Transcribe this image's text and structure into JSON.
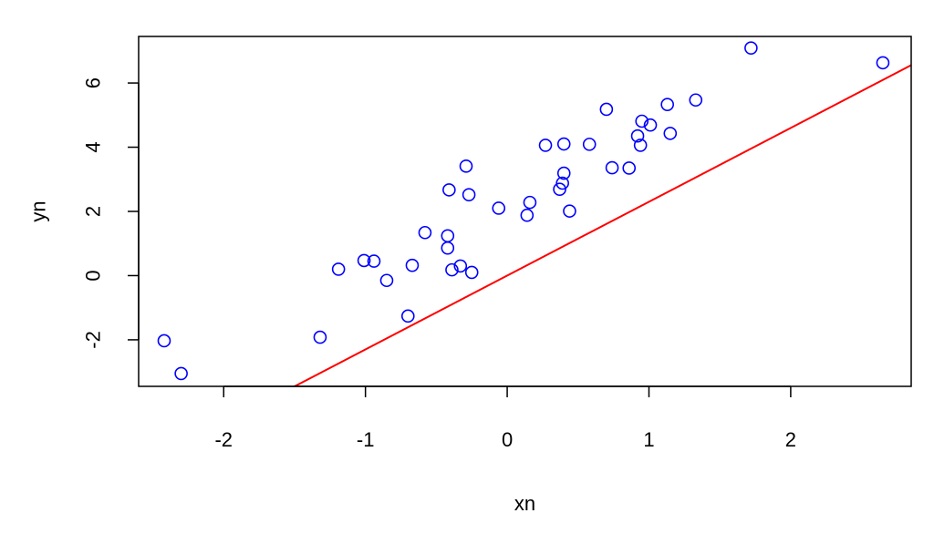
{
  "chart_data": {
    "type": "scatter",
    "title": "",
    "xlabel": "xn",
    "ylabel": "yn",
    "xlim": [
      -2.6,
      2.85
    ],
    "ylim": [
      -3.45,
      7.45
    ],
    "xticks": [
      -2,
      -1,
      0,
      1,
      2
    ],
    "yticks": [
      -2,
      0,
      2,
      4,
      6
    ],
    "grid": false,
    "legend": "none",
    "point_color": "#0000ff",
    "line_color": "#ff0000",
    "points": [
      {
        "x": -2.42,
        "y": -2.03
      },
      {
        "x": -2.3,
        "y": -3.05
      },
      {
        "x": -1.32,
        "y": -1.92
      },
      {
        "x": -1.19,
        "y": 0.2
      },
      {
        "x": -1.01,
        "y": 0.47
      },
      {
        "x": -0.94,
        "y": 0.45
      },
      {
        "x": -0.85,
        "y": -0.15
      },
      {
        "x": -0.7,
        "y": -1.26
      },
      {
        "x": -0.67,
        "y": 0.32
      },
      {
        "x": -0.58,
        "y": 1.34
      },
      {
        "x": -0.42,
        "y": 1.24
      },
      {
        "x": -0.42,
        "y": 0.86
      },
      {
        "x": -0.41,
        "y": 2.67
      },
      {
        "x": -0.39,
        "y": 0.18
      },
      {
        "x": -0.33,
        "y": 0.3
      },
      {
        "x": -0.29,
        "y": 3.41
      },
      {
        "x": -0.27,
        "y": 2.52
      },
      {
        "x": -0.25,
        "y": 0.1
      },
      {
        "x": -0.06,
        "y": 2.1
      },
      {
        "x": 0.14,
        "y": 1.88
      },
      {
        "x": 0.16,
        "y": 2.28
      },
      {
        "x": 0.27,
        "y": 4.06
      },
      {
        "x": 0.37,
        "y": 2.69
      },
      {
        "x": 0.39,
        "y": 2.88
      },
      {
        "x": 0.4,
        "y": 3.19
      },
      {
        "x": 0.4,
        "y": 4.1
      },
      {
        "x": 0.44,
        "y": 2.01
      },
      {
        "x": 0.58,
        "y": 4.09
      },
      {
        "x": 0.7,
        "y": 5.18
      },
      {
        "x": 0.74,
        "y": 3.36
      },
      {
        "x": 0.86,
        "y": 3.35
      },
      {
        "x": 0.92,
        "y": 4.35
      },
      {
        "x": 0.94,
        "y": 4.06
      },
      {
        "x": 0.95,
        "y": 4.81
      },
      {
        "x": 1.01,
        "y": 4.69
      },
      {
        "x": 1.13,
        "y": 5.33
      },
      {
        "x": 1.15,
        "y": 4.43
      },
      {
        "x": 1.33,
        "y": 5.47
      },
      {
        "x": 1.72,
        "y": 7.09
      },
      {
        "x": 2.65,
        "y": 6.63
      }
    ],
    "line": {
      "intercept": 0,
      "slope": 2.3
    }
  }
}
